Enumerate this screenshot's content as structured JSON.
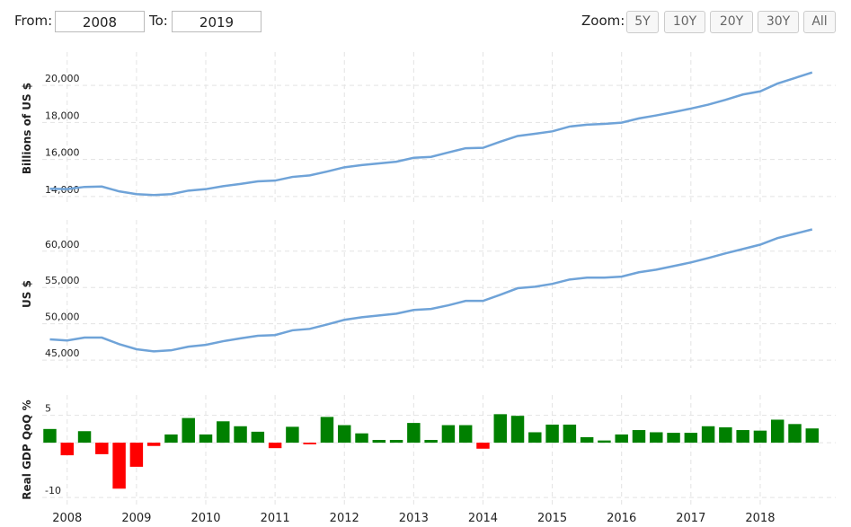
{
  "controls": {
    "from_label": "From:",
    "from_value": "2008",
    "to_label": "To:",
    "to_value": "2019",
    "zoom_label": "Zoom:",
    "zoom_buttons": [
      "5Y",
      "10Y",
      "20Y",
      "30Y",
      "All"
    ]
  },
  "chart_data": [
    {
      "type": "line",
      "ylabel": "Billions of US $",
      "color": "#6fa3d8",
      "x": [
        2007.75,
        2008,
        2008.25,
        2008.5,
        2008.75,
        2009,
        2009.25,
        2009.5,
        2009.75,
        2010,
        2010.25,
        2010.5,
        2010.75,
        2011,
        2011.25,
        2011.5,
        2011.75,
        2012,
        2012.25,
        2012.5,
        2012.75,
        2013,
        2013.25,
        2013.5,
        2013.75,
        2014,
        2014.25,
        2014.5,
        2014.75,
        2015,
        2015.25,
        2015.5,
        2015.75,
        2016,
        2016.25,
        2016.5,
        2016.75,
        2017,
        2017.25,
        2017.5,
        2017.75,
        2018,
        2018.25,
        2018.5,
        2018.75
      ],
      "values": [
        14420,
        14400,
        14520,
        14540,
        14280,
        14130,
        14080,
        14130,
        14320,
        14400,
        14560,
        14680,
        14820,
        14860,
        15060,
        15140,
        15350,
        15580,
        15700,
        15790,
        15880,
        16090,
        16140,
        16380,
        16610,
        16630,
        16960,
        17270,
        17390,
        17520,
        17780,
        17880,
        17920,
        17990,
        18220,
        18380,
        18560,
        18750,
        18960,
        19220,
        19510,
        19680,
        20100,
        20400,
        20700
      ],
      "xlim": [
        2007.64,
        2019.09
      ],
      "xticks": [
        2008,
        2009,
        2010,
        2011,
        2012,
        2013,
        2014,
        2015,
        2016,
        2017,
        2018
      ],
      "ylim": [
        13560,
        21800
      ],
      "yticks": [
        {
          "value": 14000,
          "label": "14,000"
        },
        {
          "value": 16000,
          "label": "16,000"
        },
        {
          "value": 18000,
          "label": "18,000"
        },
        {
          "value": 20000,
          "label": "20,000"
        }
      ],
      "grid": true
    },
    {
      "type": "line",
      "ylabel": "US $",
      "color": "#6fa3d8",
      "x": [
        2007.75,
        2008,
        2008.25,
        2008.5,
        2008.75,
        2009,
        2009.25,
        2009.5,
        2009.75,
        2010,
        2010.25,
        2010.5,
        2010.75,
        2011,
        2011.25,
        2011.5,
        2011.75,
        2012,
        2012.25,
        2012.5,
        2012.75,
        2013,
        2013.25,
        2013.5,
        2013.75,
        2014,
        2014.25,
        2014.5,
        2014.75,
        2015,
        2015.25,
        2015.5,
        2015.75,
        2016,
        2016.25,
        2016.5,
        2016.75,
        2017,
        2017.25,
        2017.5,
        2017.75,
        2018,
        2018.25,
        2018.5,
        2018.75
      ],
      "values": [
        47850,
        47700,
        48100,
        48100,
        47200,
        46500,
        46200,
        46350,
        46850,
        47100,
        47600,
        48000,
        48350,
        48450,
        49100,
        49300,
        49900,
        50550,
        50900,
        51150,
        51400,
        51900,
        52050,
        52550,
        53150,
        53150,
        54000,
        54900,
        55100,
        55500,
        56100,
        56350,
        56350,
        56500,
        57100,
        57450,
        57950,
        58450,
        59050,
        59700,
        60300,
        60900,
        61800,
        62400,
        63000
      ],
      "xlim": [
        2007.64,
        2019.09
      ],
      "xticks": [
        2008,
        2009,
        2010,
        2011,
        2012,
        2013,
        2014,
        2015,
        2016,
        2017,
        2018
      ],
      "ylim": [
        43900,
        64300
      ],
      "yticks": [
        {
          "value": 45000,
          "label": "45,000"
        },
        {
          "value": 50000,
          "label": "50,000"
        },
        {
          "value": 55000,
          "label": "55,000"
        },
        {
          "value": 60000,
          "label": "60,000"
        }
      ],
      "grid": true
    },
    {
      "type": "bar",
      "ylabel": "Real GDP QoQ %",
      "color": "#008000",
      "negative_color": "#ff0000",
      "x": [
        2007.75,
        2008,
        2008.25,
        2008.5,
        2008.75,
        2009,
        2009.25,
        2009.5,
        2009.75,
        2010,
        2010.25,
        2010.5,
        2010.75,
        2011,
        2011.25,
        2011.5,
        2011.75,
        2012,
        2012.25,
        2012.5,
        2012.75,
        2013,
        2013.25,
        2013.5,
        2013.75,
        2014,
        2014.25,
        2014.5,
        2014.75,
        2015,
        2015.25,
        2015.5,
        2015.75,
        2016,
        2016.25,
        2016.5,
        2016.75,
        2017,
        2017.25,
        2017.5,
        2017.75,
        2018,
        2018.25,
        2018.5,
        2018.75
      ],
      "values": [
        2.5,
        -2.3,
        2.1,
        -2.1,
        -8.4,
        -4.4,
        -0.6,
        1.5,
        4.5,
        1.5,
        3.9,
        3.0,
        2.0,
        -1.0,
        2.9,
        -0.3,
        4.7,
        3.2,
        1.7,
        0.5,
        0.5,
        3.6,
        0.5,
        3.2,
        3.2,
        -1.1,
        5.2,
        4.9,
        1.9,
        3.3,
        3.3,
        1.0,
        0.4,
        1.5,
        2.3,
        1.9,
        1.8,
        1.8,
        3.0,
        2.8,
        2.3,
        2.2,
        4.2,
        3.4,
        2.6
      ],
      "xlim": [
        2007.64,
        2019.09
      ],
      "xticks": [
        2008,
        2009,
        2010,
        2011,
        2012,
        2013,
        2014,
        2015,
        2016,
        2017,
        2018
      ],
      "ylim": [
        -11.3,
        8.7
      ],
      "yticks": [
        -10,
        0,
        5
      ],
      "grid": true
    }
  ]
}
